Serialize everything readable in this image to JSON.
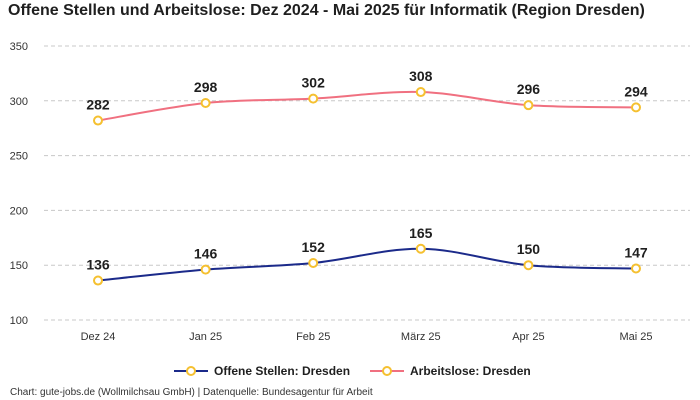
{
  "title": "Offene Stellen und Arbeitslose: Dez 2024 - Mai 2025 für Informatik (Region Dresden)",
  "source": "Chart: gute-jobs.de (Wollmilchsau GmbH) | Datenquelle: Bundesagentur für Arbeit",
  "chart_data": {
    "type": "line",
    "categories": [
      "Dez 24",
      "Jan 25",
      "Feb 25",
      "März 25",
      "Apr 25",
      "Mai 25"
    ],
    "series": [
      {
        "name": "Offene Stellen: Dresden",
        "values": [
          136,
          146,
          152,
          165,
          150,
          147
        ],
        "color": "#1b2a8a"
      },
      {
        "name": "Arbeitslose: Dresden",
        "values": [
          282,
          298,
          302,
          308,
          296,
          294
        ],
        "color": "#f07080"
      }
    ],
    "marker_color": "#f5c030",
    "ylim": [
      100,
      350
    ],
    "yticks": [
      100,
      150,
      200,
      250,
      300,
      350
    ],
    "grid": true,
    "legend": "bottom-center"
  }
}
